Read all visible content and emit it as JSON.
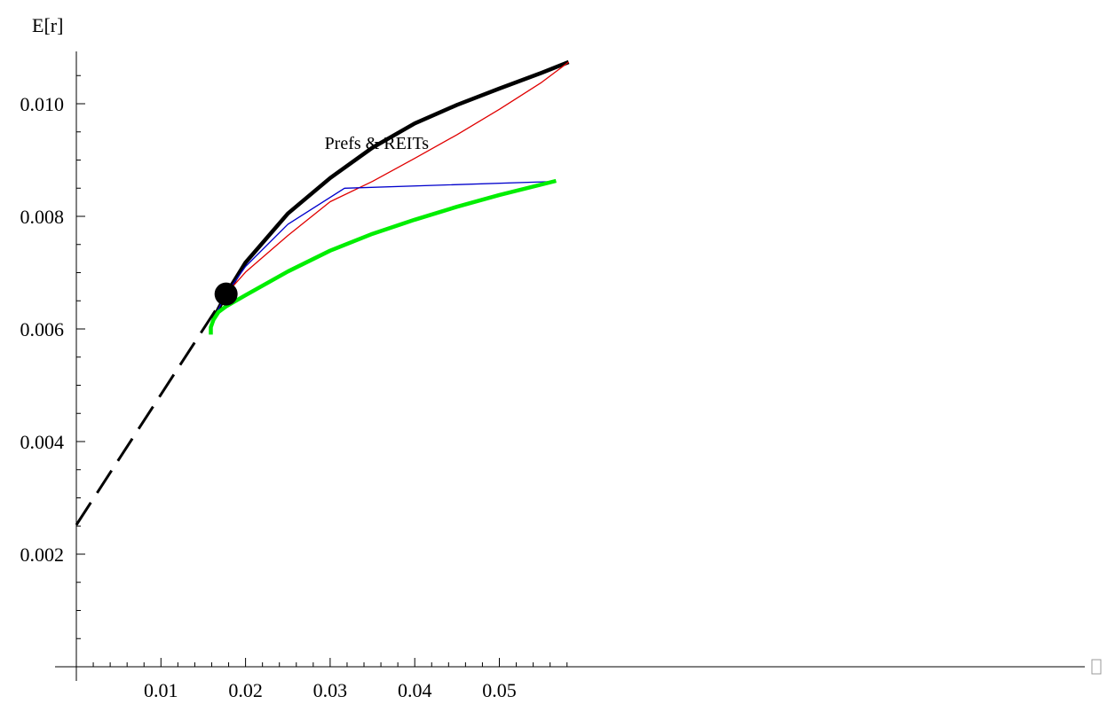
{
  "chart_data": {
    "type": "line",
    "title": "",
    "ylabel": "E[r]",
    "xlabel": "",
    "xlim": [
      0,
      0.059
    ],
    "ylim": [
      0,
      0.011
    ],
    "x_ticks": [
      0.01,
      0.02,
      0.03,
      0.04,
      0.05
    ],
    "x_tick_labels": [
      "0.01",
      "0.02",
      "0.03",
      "0.04",
      "0.05"
    ],
    "y_ticks": [
      0.002,
      0.004,
      0.006,
      0.008,
      0.01
    ],
    "y_tick_labels": [
      "0.002",
      "0.004",
      "0.006",
      "0.008",
      "0.010"
    ],
    "grid": false,
    "annotations": [
      {
        "text": "Prefs & REITs",
        "x": 0.0355,
        "y": 0.0092
      }
    ],
    "series": [
      {
        "style": "dashed",
        "color": "#000000",
        "x": [
          0.0,
          0.0177
        ],
        "y": [
          0.00252,
          0.00662
        ]
      },
      {
        "style": "thick",
        "color": "#000000",
        "x": [
          0.0162,
          0.0177,
          0.02,
          0.025,
          0.03,
          0.035,
          0.04,
          0.045,
          0.05,
          0.055,
          0.0582
        ],
        "y": [
          0.00618,
          0.00662,
          0.00718,
          0.00805,
          0.00868,
          0.00922,
          0.00965,
          0.00998,
          0.01027,
          0.01055,
          0.01074
        ]
      },
      {
        "style": "thin",
        "color": "#e00000",
        "x": [
          0.0162,
          0.0177,
          0.02,
          0.025,
          0.03,
          0.035,
          0.04,
          0.045,
          0.05,
          0.055,
          0.0582
        ],
        "y": [
          0.00618,
          0.00662,
          0.00701,
          0.00766,
          0.00826,
          0.00862,
          0.00903,
          0.00945,
          0.0099,
          0.01038,
          0.01074
        ]
      },
      {
        "style": "thin",
        "color": "#0000cc",
        "x": [
          0.0162,
          0.0177,
          0.02,
          0.025,
          0.0317,
          0.0567
        ],
        "y": [
          0.00618,
          0.00662,
          0.00711,
          0.00786,
          0.0085,
          0.00862
        ]
      },
      {
        "style": "thick",
        "color": "#00ee00",
        "x": [
          0.0159,
          0.0159,
          0.0162,
          0.0168,
          0.0177,
          0.02,
          0.025,
          0.03,
          0.035,
          0.04,
          0.045,
          0.05,
          0.0567
        ],
        "y": [
          0.0059,
          0.00603,
          0.00616,
          0.0063,
          0.0064,
          0.0066,
          0.00702,
          0.00739,
          0.00769,
          0.00794,
          0.00817,
          0.00838,
          0.00863
        ]
      }
    ],
    "marker": {
      "x": 0.0177,
      "y": 0.00662,
      "color": "#000000"
    }
  }
}
